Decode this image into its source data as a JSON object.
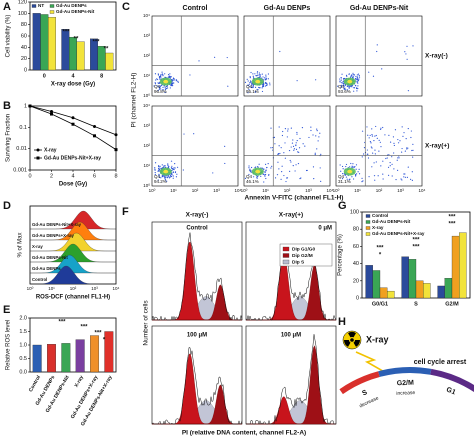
{
  "chart_data": [
    {
      "type": "bar",
      "label": "A",
      "ylabel": "Cell viability (%)",
      "xlabel": "X-ray dose (Gy)",
      "categories": [
        "0",
        "4",
        "8"
      ],
      "series": [
        {
          "name": "NT",
          "color": "#2b4a9b",
          "values": [
            100,
            72,
            55
          ]
        },
        {
          "name": "Gd-Au DENPs",
          "color": "#3aa655",
          "values": [
            98,
            58,
            42
          ]
        },
        {
          "name": "Gd-Au DENPs-Nit",
          "color": "#f2e33a",
          "values": [
            93,
            50,
            30
          ]
        }
      ],
      "ylim": [
        0,
        120
      ],
      "yticks": [
        0,
        20,
        40,
        60,
        80,
        100,
        120
      ],
      "annotations": [
        "***",
        "**",
        "***",
        "**"
      ]
    },
    {
      "type": "line",
      "label": "B",
      "ylabel": "Surviving Fraction",
      "xlabel": "Dose (Gy)",
      "log_y": true,
      "x": [
        0,
        2,
        4,
        6,
        8
      ],
      "xlim": [
        0,
        8
      ],
      "xticks": [
        0,
        2,
        4,
        6,
        8
      ],
      "ylim": [
        0.001,
        1
      ],
      "yticks": [
        0.001,
        0.01,
        0.1,
        1
      ],
      "series": [
        {
          "name": "X-ray",
          "color": "#000000",
          "marker": "circle",
          "values": [
            1,
            0.55,
            0.28,
            0.11,
            0.045
          ]
        },
        {
          "name": "Gd-Au DENPs-Nit+X-ray",
          "color": "#000000",
          "marker": "square",
          "values": [
            1,
            0.42,
            0.14,
            0.04,
            0.009
          ]
        }
      ]
    },
    {
      "type": "bar",
      "label": "E",
      "ylabel": "Relative ROS level",
      "categories": [
        "Control",
        "Gd-Au DENPs",
        "Gd-Au DENPs-Nit",
        "X-ray",
        "Gd-Au DENPs+X-ray",
        "Gd-Au DENPs-Nit+X-ray"
      ],
      "values": [
        1.0,
        1.03,
        1.06,
        1.2,
        1.35,
        1.5
      ],
      "colors": [
        "#2b5fb4",
        "#d9302c",
        "#3aa655",
        "#7b3fa0",
        "#f0902a",
        "#e0302a"
      ],
      "ylim": [
        0,
        2
      ],
      "yticks": [
        {
          "value": 0,
          "label": "0.0"
        },
        {
          "value": 0.5,
          "label": "0.5"
        },
        {
          "value": 1,
          "label": "1.0"
        },
        {
          "value": 1.5,
          "label": "1.5"
        },
        {
          "value": 2,
          "label": "2.0"
        }
      ],
      "annotations": [
        "***",
        "***",
        "***",
        "*"
      ]
    },
    {
      "type": "bar",
      "label": "G",
      "ylabel": "Percentage (%)",
      "categories": [
        "G0/G1",
        "S",
        "G2/M"
      ],
      "series": [
        {
          "name": "Control",
          "color": "#2b4a9b",
          "values": [
            38,
            48,
            14
          ]
        },
        {
          "name": "Gd-Au DENPs-Nit",
          "color": "#3aa655",
          "values": [
            32,
            45,
            23
          ]
        },
        {
          "name": "X-ray",
          "color": "#f0a020",
          "values": [
            12,
            20,
            72
          ]
        },
        {
          "name": "Gd-Au DENPs-Nit+X-ray",
          "color": "#f2e33a",
          "values": [
            8,
            17,
            76
          ]
        }
      ],
      "ylim": [
        0,
        100
      ],
      "yticks": [
        0,
        20,
        40,
        60,
        80,
        100
      ],
      "annotations": [
        "*",
        "***",
        "***",
        "***",
        "***",
        "***"
      ]
    }
  ],
  "panels": {
    "C": {
      "label": "C",
      "columns": [
        "Control",
        "Gd-Au DENPs",
        "Gd-Au DENPs-Nit"
      ],
      "rows": [
        "X-ray(-)",
        "X-ray(+)"
      ],
      "ylabel": "PI (channel FL2-H)",
      "xlabel": "Annexin V-FITC (channel FL1-H)",
      "ticks": [
        "10⁰",
        "10¹",
        "10²",
        "10³",
        "10⁴"
      ],
      "quadrant": "Q4",
      "percentages": [
        [
          "96.8%",
          "95.1%",
          "93.6%"
        ],
        [
          "94.2%",
          "46.1%",
          "31.1%"
        ]
      ]
    },
    "D": {
      "label": "D",
      "series": [
        "Gd-Au DENPs-Nit+X-ray",
        "Gd-Au DENPs+X-ray",
        "X-ray",
        "Gd-Au DENPs-Nit",
        "Gd-Au DENPs",
        "Control"
      ],
      "ylabel": "% of Max",
      "xlabel": "ROS-DCF (channel FL1-H)",
      "ticks": [
        "10⁰",
        "10¹",
        "10²",
        "10³",
        "10⁴"
      ]
    },
    "F": {
      "label": "F",
      "columns": [
        "X-ray(-)",
        "X-ray(+)"
      ],
      "conditions": [
        "Control",
        "0 μM",
        "100 μM",
        "100 μM"
      ],
      "legend": [
        "Dip G1/G0",
        "Dip G2/M",
        "Dip S"
      ],
      "ylabel": "Number of cells",
      "xlabel": "PI (relative DNA content, channel FL2-A)"
    },
    "H": {
      "label": "H",
      "source": "X-ray",
      "arrest": "cell cycle arrest",
      "phases": [
        "S",
        "G2/M",
        "G1"
      ],
      "changes": [
        "decrease",
        "increase"
      ]
    }
  }
}
